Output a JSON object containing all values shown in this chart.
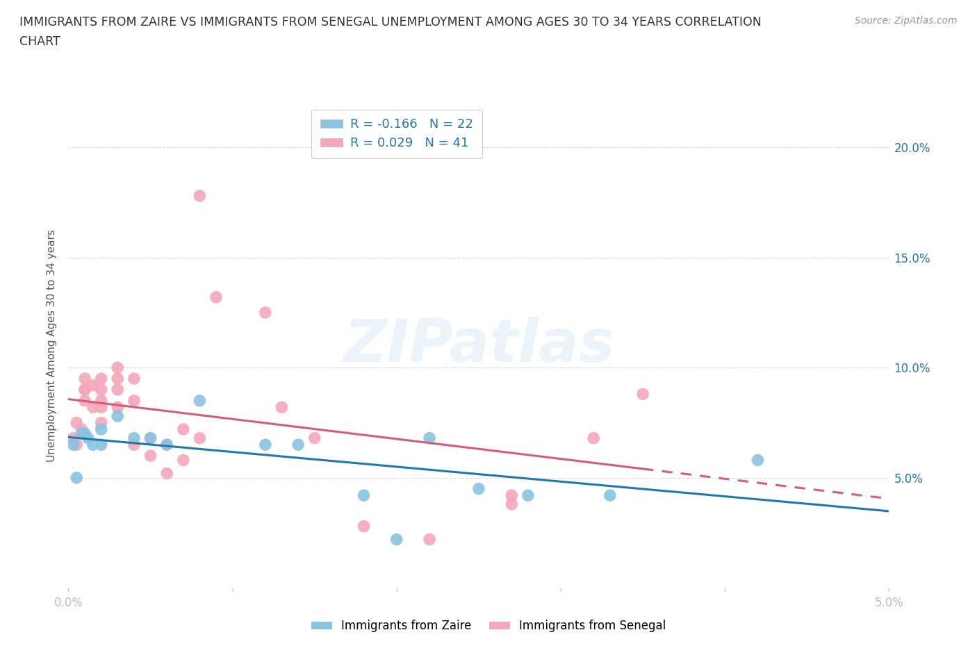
{
  "title_line1": "IMMIGRANTS FROM ZAIRE VS IMMIGRANTS FROM SENEGAL UNEMPLOYMENT AMONG AGES 30 TO 34 YEARS CORRELATION",
  "title_line2": "CHART",
  "source": "Source: ZipAtlas.com",
  "ylabel": "Unemployment Among Ages 30 to 34 years",
  "xlim": [
    0.0,
    0.05
  ],
  "ylim": [
    0.0,
    0.22
  ],
  "yticks": [
    0.05,
    0.1,
    0.15,
    0.2
  ],
  "xticks": [
    0.0,
    0.01,
    0.02,
    0.03,
    0.04,
    0.05
  ],
  "xtick_labels": [
    "0.0%",
    "",
    "",
    "",
    "",
    "5.0%"
  ],
  "ytick_labels_right": [
    "5.0%",
    "10.0%",
    "15.0%",
    "20.0%"
  ],
  "zaire_color": "#89c4e1",
  "zaire_line_color": "#2176ae",
  "senegal_color": "#f4a7b9",
  "senegal_line_color": "#d45b7a",
  "zaire_R": -0.166,
  "zaire_N": 22,
  "senegal_R": 0.029,
  "senegal_N": 41,
  "watermark": "ZIPatlas",
  "legend_label_zaire": "Immigrants from Zaire",
  "legend_label_senegal": "Immigrants from Senegal",
  "zaire_x": [
    0.0003,
    0.0005,
    0.0008,
    0.001,
    0.0012,
    0.0015,
    0.002,
    0.002,
    0.003,
    0.004,
    0.005,
    0.006,
    0.008,
    0.012,
    0.014,
    0.018,
    0.02,
    0.022,
    0.025,
    0.028,
    0.033,
    0.042
  ],
  "zaire_y": [
    0.065,
    0.05,
    0.07,
    0.07,
    0.068,
    0.065,
    0.072,
    0.065,
    0.078,
    0.068,
    0.068,
    0.065,
    0.085,
    0.065,
    0.065,
    0.042,
    0.022,
    0.068,
    0.045,
    0.042,
    0.042,
    0.058
  ],
  "senegal_x": [
    0.0003,
    0.0005,
    0.0005,
    0.0008,
    0.001,
    0.001,
    0.001,
    0.001,
    0.001,
    0.0015,
    0.0015,
    0.002,
    0.002,
    0.002,
    0.002,
    0.002,
    0.003,
    0.003,
    0.003,
    0.003,
    0.004,
    0.004,
    0.004,
    0.005,
    0.005,
    0.006,
    0.006,
    0.007,
    0.007,
    0.008,
    0.008,
    0.009,
    0.012,
    0.013,
    0.015,
    0.018,
    0.022,
    0.027,
    0.027,
    0.032,
    0.035
  ],
  "senegal_y": [
    0.068,
    0.065,
    0.075,
    0.072,
    0.09,
    0.09,
    0.095,
    0.085,
    0.07,
    0.082,
    0.092,
    0.075,
    0.085,
    0.095,
    0.09,
    0.082,
    0.09,
    0.1,
    0.095,
    0.082,
    0.095,
    0.085,
    0.065,
    0.06,
    0.068,
    0.052,
    0.065,
    0.058,
    0.072,
    0.068,
    0.178,
    0.132,
    0.125,
    0.082,
    0.068,
    0.028,
    0.022,
    0.042,
    0.038,
    0.068,
    0.088
  ],
  "background_color": "#ffffff",
  "grid_color": "#d0d0d0",
  "trendline_zaire_x0": 0.0,
  "trendline_zaire_x1": 0.05,
  "trendline_senegal_solid_end": 0.035,
  "trendline_senegal_x1": 0.05
}
